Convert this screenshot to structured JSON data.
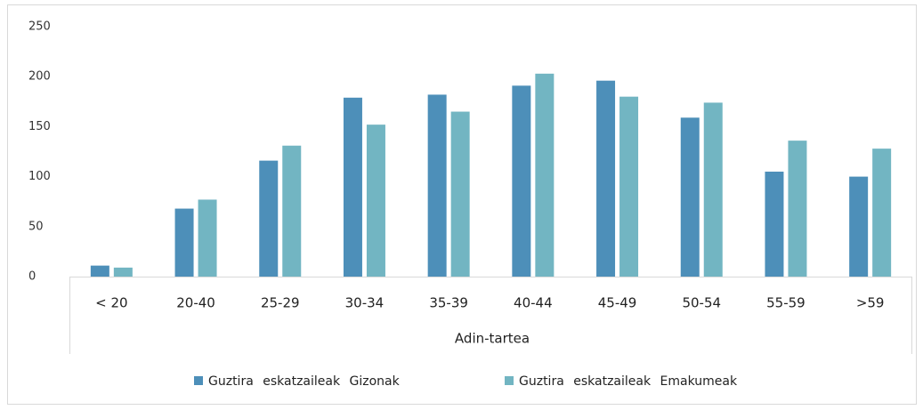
{
  "chart_data": {
    "type": "bar",
    "x_label": "Adin-tartea",
    "categories": [
      "< 20",
      "20-40",
      "25-29",
      "30-34",
      "35-39",
      "40-44",
      "45-49",
      "50-54",
      "55-59",
      ">59"
    ],
    "series": [
      {
        "name": "Guztira eskatzaileak Gizonak",
        "color": "#4d8fb9",
        "values": [
          11,
          68,
          116,
          179,
          182,
          191,
          196,
          159,
          105,
          100
        ]
      },
      {
        "name": "Guztira eskatzaileak Emakumeak",
        "color": "#72b5c2",
        "values": [
          9,
          77,
          131,
          152,
          165,
          203,
          180,
          174,
          136,
          128
        ]
      }
    ],
    "ylim": [
      0,
      250
    ],
    "yticks": [
      0,
      50,
      100,
      150,
      200,
      250
    ],
    "grid": false,
    "legend": "bottom"
  }
}
